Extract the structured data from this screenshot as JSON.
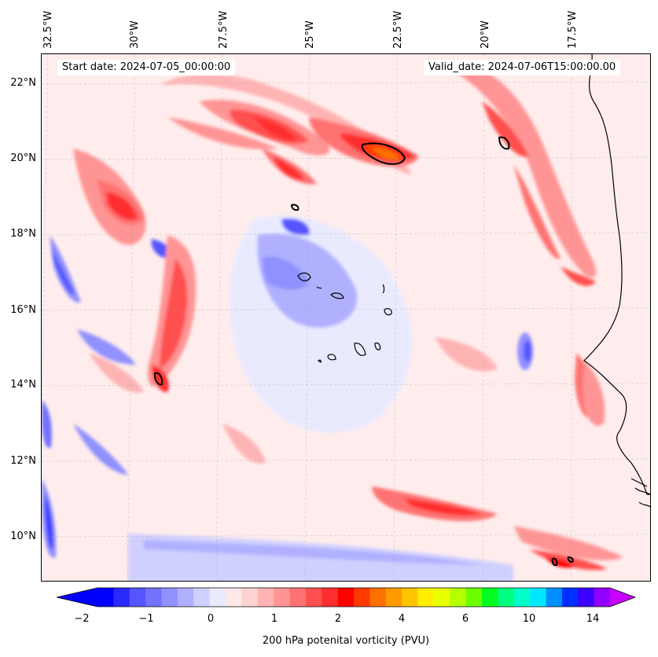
{
  "map": {
    "title_start": "Start date: 2024-07-05_00:00:00",
    "title_valid": "Valid_date: 2024-07-06T15:00:00.00",
    "lon_labels": [
      "32.5°W",
      "30°W",
      "27.5°W",
      "25°W",
      "22.5°W",
      "20°W",
      "17.5°W"
    ],
    "lat_labels": [
      "22°N",
      "20°N",
      "18°N",
      "16°N",
      "14°N",
      "12°N",
      "10°N"
    ],
    "background_color": "#ffeded",
    "coast_color": "#000000"
  },
  "colorbar": {
    "label": "200 hPa potenital vorticity (PVU)",
    "ticks": [
      "−2",
      "−1",
      "0",
      "1",
      "2",
      "4",
      "6",
      "10",
      "14"
    ],
    "colors": [
      "#0000ff",
      "#2a2aff",
      "#5555ff",
      "#7272ff",
      "#9090ff",
      "#b0b0ff",
      "#d0d0ff",
      "#eaeaff",
      "#ffe8e8",
      "#ffd2d2",
      "#ffb4b4",
      "#ff9494",
      "#ff7272",
      "#ff5050",
      "#ff2e2e",
      "#ff0000",
      "#ff3a00",
      "#ff7000",
      "#ff9a00",
      "#ffc400",
      "#ffee00",
      "#e8ff00",
      "#b4ff00",
      "#6cff00",
      "#00ff20",
      "#00ff80",
      "#00ffc8",
      "#00e8ff",
      "#0090ff",
      "#0030ff",
      "#3c00ff",
      "#9000ff"
    ],
    "under_color": "#0000ff",
    "over_color": "#c800ff"
  }
}
